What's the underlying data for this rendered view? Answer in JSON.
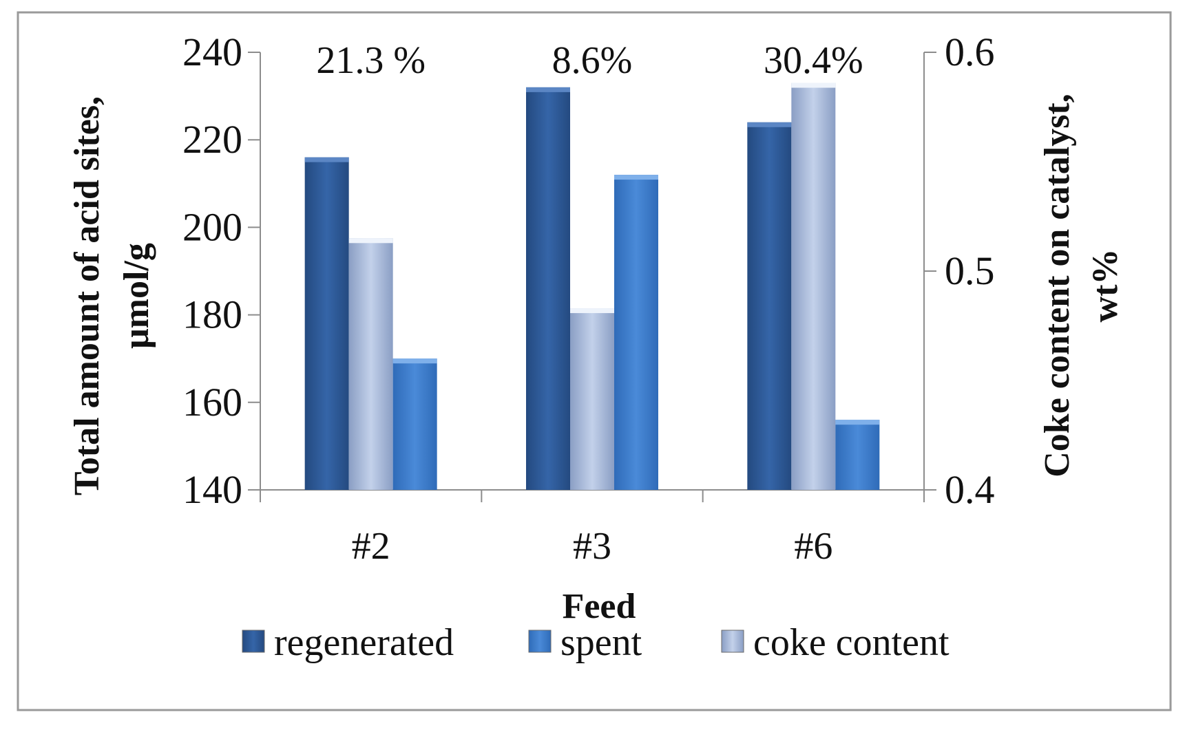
{
  "chart_data": {
    "type": "bar",
    "title": "",
    "categories": [
      "#2",
      "#3",
      "#6"
    ],
    "series": [
      {
        "name": "regenerated",
        "axis": "left",
        "color": "#2e5b97",
        "values": [
          216,
          232,
          224
        ]
      },
      {
        "name": "coke content",
        "axis": "right",
        "color": "#9fb2d3",
        "values": [
          0.515,
          0.483,
          0.586
        ]
      },
      {
        "name": "spent",
        "axis": "left",
        "color": "#3d7bcb",
        "values": [
          170,
          212,
          156
        ]
      }
    ],
    "annotations": [
      "21.3 %",
      "8.6%",
      "30.4%"
    ],
    "xlabel": "Feed",
    "ylabel_left": [
      "Total amount of acid sites,",
      "μmol/g"
    ],
    "ylabel_right": [
      "Coke content on catalyst,",
      "wt%"
    ],
    "ylim_left": [
      140,
      240
    ],
    "ylim_right": [
      0.4,
      0.6
    ],
    "yticks_left": [
      "140",
      "160",
      "180",
      "200",
      "220",
      "240"
    ],
    "yticks_right": [
      "0.4",
      "0.5",
      "0.6"
    ],
    "grid": false,
    "legend": {
      "position": "bottom",
      "order": [
        "regenerated",
        "spent",
        "coke content"
      ]
    }
  }
}
